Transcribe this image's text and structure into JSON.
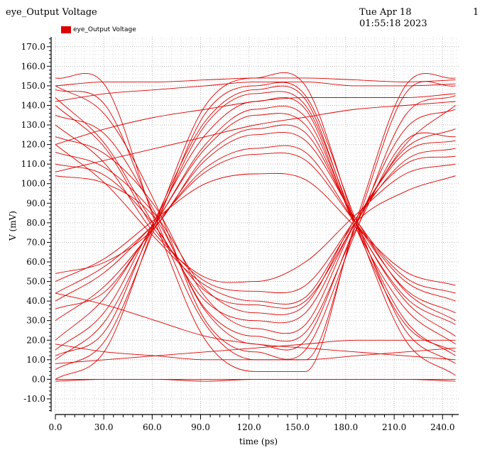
{
  "header": {
    "title": "eye_Output Voltage",
    "datetime": "Tue Apr 18 01:55:18 2023",
    "page_number": "1"
  },
  "legend": {
    "label": "eye_Output Voltage",
    "color": "#dd0000"
  },
  "chart_data": {
    "type": "line",
    "title": "eye_Output Voltage",
    "xlabel": "time (ps)",
    "ylabel": "V (mV)",
    "xlim": [
      0,
      250
    ],
    "ylim": [
      -18,
      175
    ],
    "x_ticks": [
      0,
      30,
      60,
      90,
      120,
      150,
      180,
      210,
      240
    ],
    "x_tick_labels": [
      "0.0",
      "30.0",
      "60.0",
      "90.0",
      "120.0",
      "150.0",
      "180.0",
      "210.0",
      "240.0"
    ],
    "y_ticks": [
      -10,
      0,
      10,
      20,
      30,
      40,
      50,
      60,
      70,
      80,
      90,
      100,
      110,
      120,
      130,
      140,
      150,
      160,
      170
    ],
    "y_tick_labels": [
      "-10.0",
      "0.0",
      "10.0",
      "20.0",
      "30.0",
      "40.0",
      "50.0",
      "60.0",
      "70.0",
      "80.0",
      "90.0",
      "100.0",
      "110.0",
      "120.0",
      "130.0",
      "140.0",
      "150.0",
      "160.0",
      "170.0"
    ],
    "grid": true,
    "legend_position": "top-left",
    "series_color": "#dd0000",
    "crossings": [
      {
        "x": 62,
        "y": 80
      },
      {
        "x": 186,
        "y": 80
      }
    ],
    "series": [
      {
        "name": "eye_Output Voltage",
        "x": [
          0,
          31,
          62,
          93,
          124,
          155,
          186,
          217,
          248
        ],
        "values": [
          154,
          150,
          80,
          20,
          4,
          4,
          80,
          150,
          154
        ]
      },
      {
        "x": [
          0,
          31,
          62,
          93,
          124,
          155,
          186,
          217,
          248
        ],
        "values": [
          148,
          140,
          82,
          28,
          10,
          10,
          78,
          146,
          150
        ]
      },
      {
        "x": [
          0,
          31,
          62,
          93,
          124,
          155,
          186,
          217,
          248
        ],
        "values": [
          144,
          120,
          78,
          45,
          38,
          40,
          80,
          120,
          140
        ]
      },
      {
        "x": [
          0,
          31,
          62,
          93,
          124,
          155,
          186,
          217,
          248
        ],
        "values": [
          140,
          118,
          76,
          50,
          45,
          48,
          82,
          118,
          128
        ]
      },
      {
        "x": [
          0,
          31,
          62,
          93,
          124,
          155,
          186,
          217,
          248
        ],
        "values": [
          130,
          110,
          74,
          52,
          50,
          60,
          84,
          105,
          110
        ]
      },
      {
        "x": [
          0,
          31,
          62,
          93,
          124,
          155,
          186,
          217,
          248
        ],
        "values": [
          120,
          100,
          72,
          48,
          40,
          42,
          80,
          96,
          104
        ]
      },
      {
        "x": [
          0,
          31,
          62,
          93,
          124,
          155,
          186,
          217,
          248
        ],
        "values": [
          110,
          104,
          78,
          40,
          30,
          34,
          80,
          112,
          118
        ]
      },
      {
        "x": [
          0,
          31,
          62,
          93,
          124,
          155,
          186,
          217,
          248
        ],
        "values": [
          104,
          100,
          82,
          36,
          22,
          24,
          76,
          122,
          124
        ]
      },
      {
        "x": [
          0,
          31,
          62,
          93,
          124,
          155,
          186,
          217,
          248
        ],
        "values": [
          150,
          135,
          90,
          30,
          14,
          15,
          75,
          135,
          145
        ]
      },
      {
        "x": [
          0,
          31,
          62,
          93,
          124,
          155,
          186,
          217,
          248
        ],
        "values": [
          135,
          125,
          85,
          35,
          18,
          20,
          78,
          128,
          138
        ]
      },
      {
        "x": [
          0,
          31,
          62,
          93,
          124,
          155,
          186,
          217,
          248
        ],
        "values": [
          124,
          115,
          88,
          42,
          26,
          28,
          80,
          116,
          122
        ]
      },
      {
        "x": [
          0,
          31,
          62,
          93,
          124,
          155,
          186,
          217,
          248
        ],
        "values": [
          116,
          108,
          84,
          46,
          34,
          38,
          82,
          110,
          114
        ]
      },
      {
        "x": [
          0,
          31,
          62,
          93,
          124,
          155,
          186,
          217,
          248
        ],
        "values": [
          0,
          15,
          80,
          140,
          154,
          150,
          80,
          20,
          2
        ]
      },
      {
        "x": [
          0,
          31,
          62,
          93,
          124,
          155,
          186,
          217,
          248
        ],
        "values": [
          5,
          20,
          78,
          136,
          150,
          145,
          82,
          25,
          8
        ]
      },
      {
        "x": [
          0,
          31,
          62,
          93,
          124,
          155,
          186,
          217,
          248
        ],
        "values": [
          10,
          30,
          80,
          130,
          146,
          140,
          80,
          30,
          12
        ]
      },
      {
        "x": [
          0,
          31,
          62,
          93,
          124,
          155,
          186,
          217,
          248
        ],
        "values": [
          15,
          35,
          82,
          125,
          142,
          138,
          78,
          36,
          18
        ]
      },
      {
        "x": [
          0,
          31,
          62,
          93,
          124,
          155,
          186,
          217,
          248
        ],
        "values": [
          20,
          42,
          80,
          118,
          135,
          130,
          80,
          40,
          22
        ]
      },
      {
        "x": [
          0,
          31,
          62,
          93,
          124,
          155,
          186,
          217,
          248
        ],
        "values": [
          30,
          48,
          78,
          112,
          125,
          122,
          82,
          45,
          30
        ]
      },
      {
        "x": [
          0,
          31,
          62,
          93,
          124,
          155,
          186,
          217,
          248
        ],
        "values": [
          40,
          55,
          80,
          106,
          115,
          112,
          80,
          50,
          40
        ]
      },
      {
        "x": [
          0,
          31,
          62,
          93,
          124,
          155,
          186,
          217,
          248
        ],
        "values": [
          50,
          62,
          82,
          100,
          105,
          102,
          78,
          55,
          48
        ]
      },
      {
        "x": [
          0,
          31,
          62,
          93,
          124,
          155,
          186,
          217,
          248
        ],
        "values": [
          44,
          58,
          80,
          108,
          118,
          116,
          80,
          46,
          34
        ]
      },
      {
        "x": [
          0,
          31,
          62,
          93,
          124,
          155,
          186,
          217,
          248
        ],
        "values": [
          54,
          60,
          78,
          114,
          128,
          126,
          82,
          52,
          44
        ]
      },
      {
        "x": [
          0,
          31,
          62,
          93,
          124,
          155,
          186,
          217,
          248
        ],
        "values": [
          36,
          45,
          80,
          120,
          138,
          134,
          80,
          42,
          28
        ]
      },
      {
        "x": [
          0,
          31,
          62,
          93,
          124,
          155,
          186,
          217,
          248
        ],
        "values": [
          12,
          25,
          82,
          132,
          148,
          143,
          78,
          28,
          14
        ]
      },
      {
        "x": [
          0,
          31,
          62,
          93,
          124,
          155,
          186,
          217,
          248
        ],
        "values": [
          0,
          0,
          0,
          0,
          0,
          0,
          0,
          0,
          0
        ]
      },
      {
        "x": [
          0,
          31,
          62,
          93,
          124,
          155,
          186,
          217,
          248
        ],
        "values": [
          -1,
          0,
          0,
          -1,
          0,
          0,
          0,
          0,
          -1
        ]
      },
      {
        "x": [
          0,
          31,
          62,
          93,
          124,
          155,
          186,
          217,
          248
        ],
        "values": [
          44,
          38,
          30,
          22,
          18,
          16,
          14,
          12,
          10
        ]
      },
      {
        "x": [
          0,
          31,
          62,
          93,
          124,
          155,
          186,
          217,
          248
        ],
        "values": [
          18,
          14,
          12,
          10,
          10,
          10,
          12,
          14,
          16
        ]
      },
      {
        "x": [
          0,
          31,
          62,
          93,
          124,
          155,
          186,
          217,
          248
        ],
        "values": [
          8,
          10,
          12,
          14,
          16,
          18,
          20,
          20,
          20
        ]
      },
      {
        "x": [
          0,
          31,
          62,
          93,
          124,
          155,
          186,
          217,
          248
        ],
        "values": [
          150,
          152,
          152,
          153,
          154,
          154,
          153,
          152,
          153
        ]
      },
      {
        "x": [
          0,
          31,
          62,
          93,
          124,
          155,
          186,
          217,
          248
        ],
        "values": [
          142,
          146,
          148,
          150,
          152,
          152,
          150,
          150,
          151
        ]
      },
      {
        "x": [
          0,
          31,
          62,
          93,
          124,
          155,
          186,
          217,
          248
        ],
        "values": [
          120,
          128,
          134,
          138,
          142,
          144,
          144,
          144,
          146
        ]
      },
      {
        "x": [
          0,
          31,
          62,
          93,
          124,
          155,
          186,
          217,
          248
        ],
        "values": [
          106,
          112,
          118,
          124,
          130,
          134,
          138,
          140,
          142
        ]
      }
    ]
  }
}
